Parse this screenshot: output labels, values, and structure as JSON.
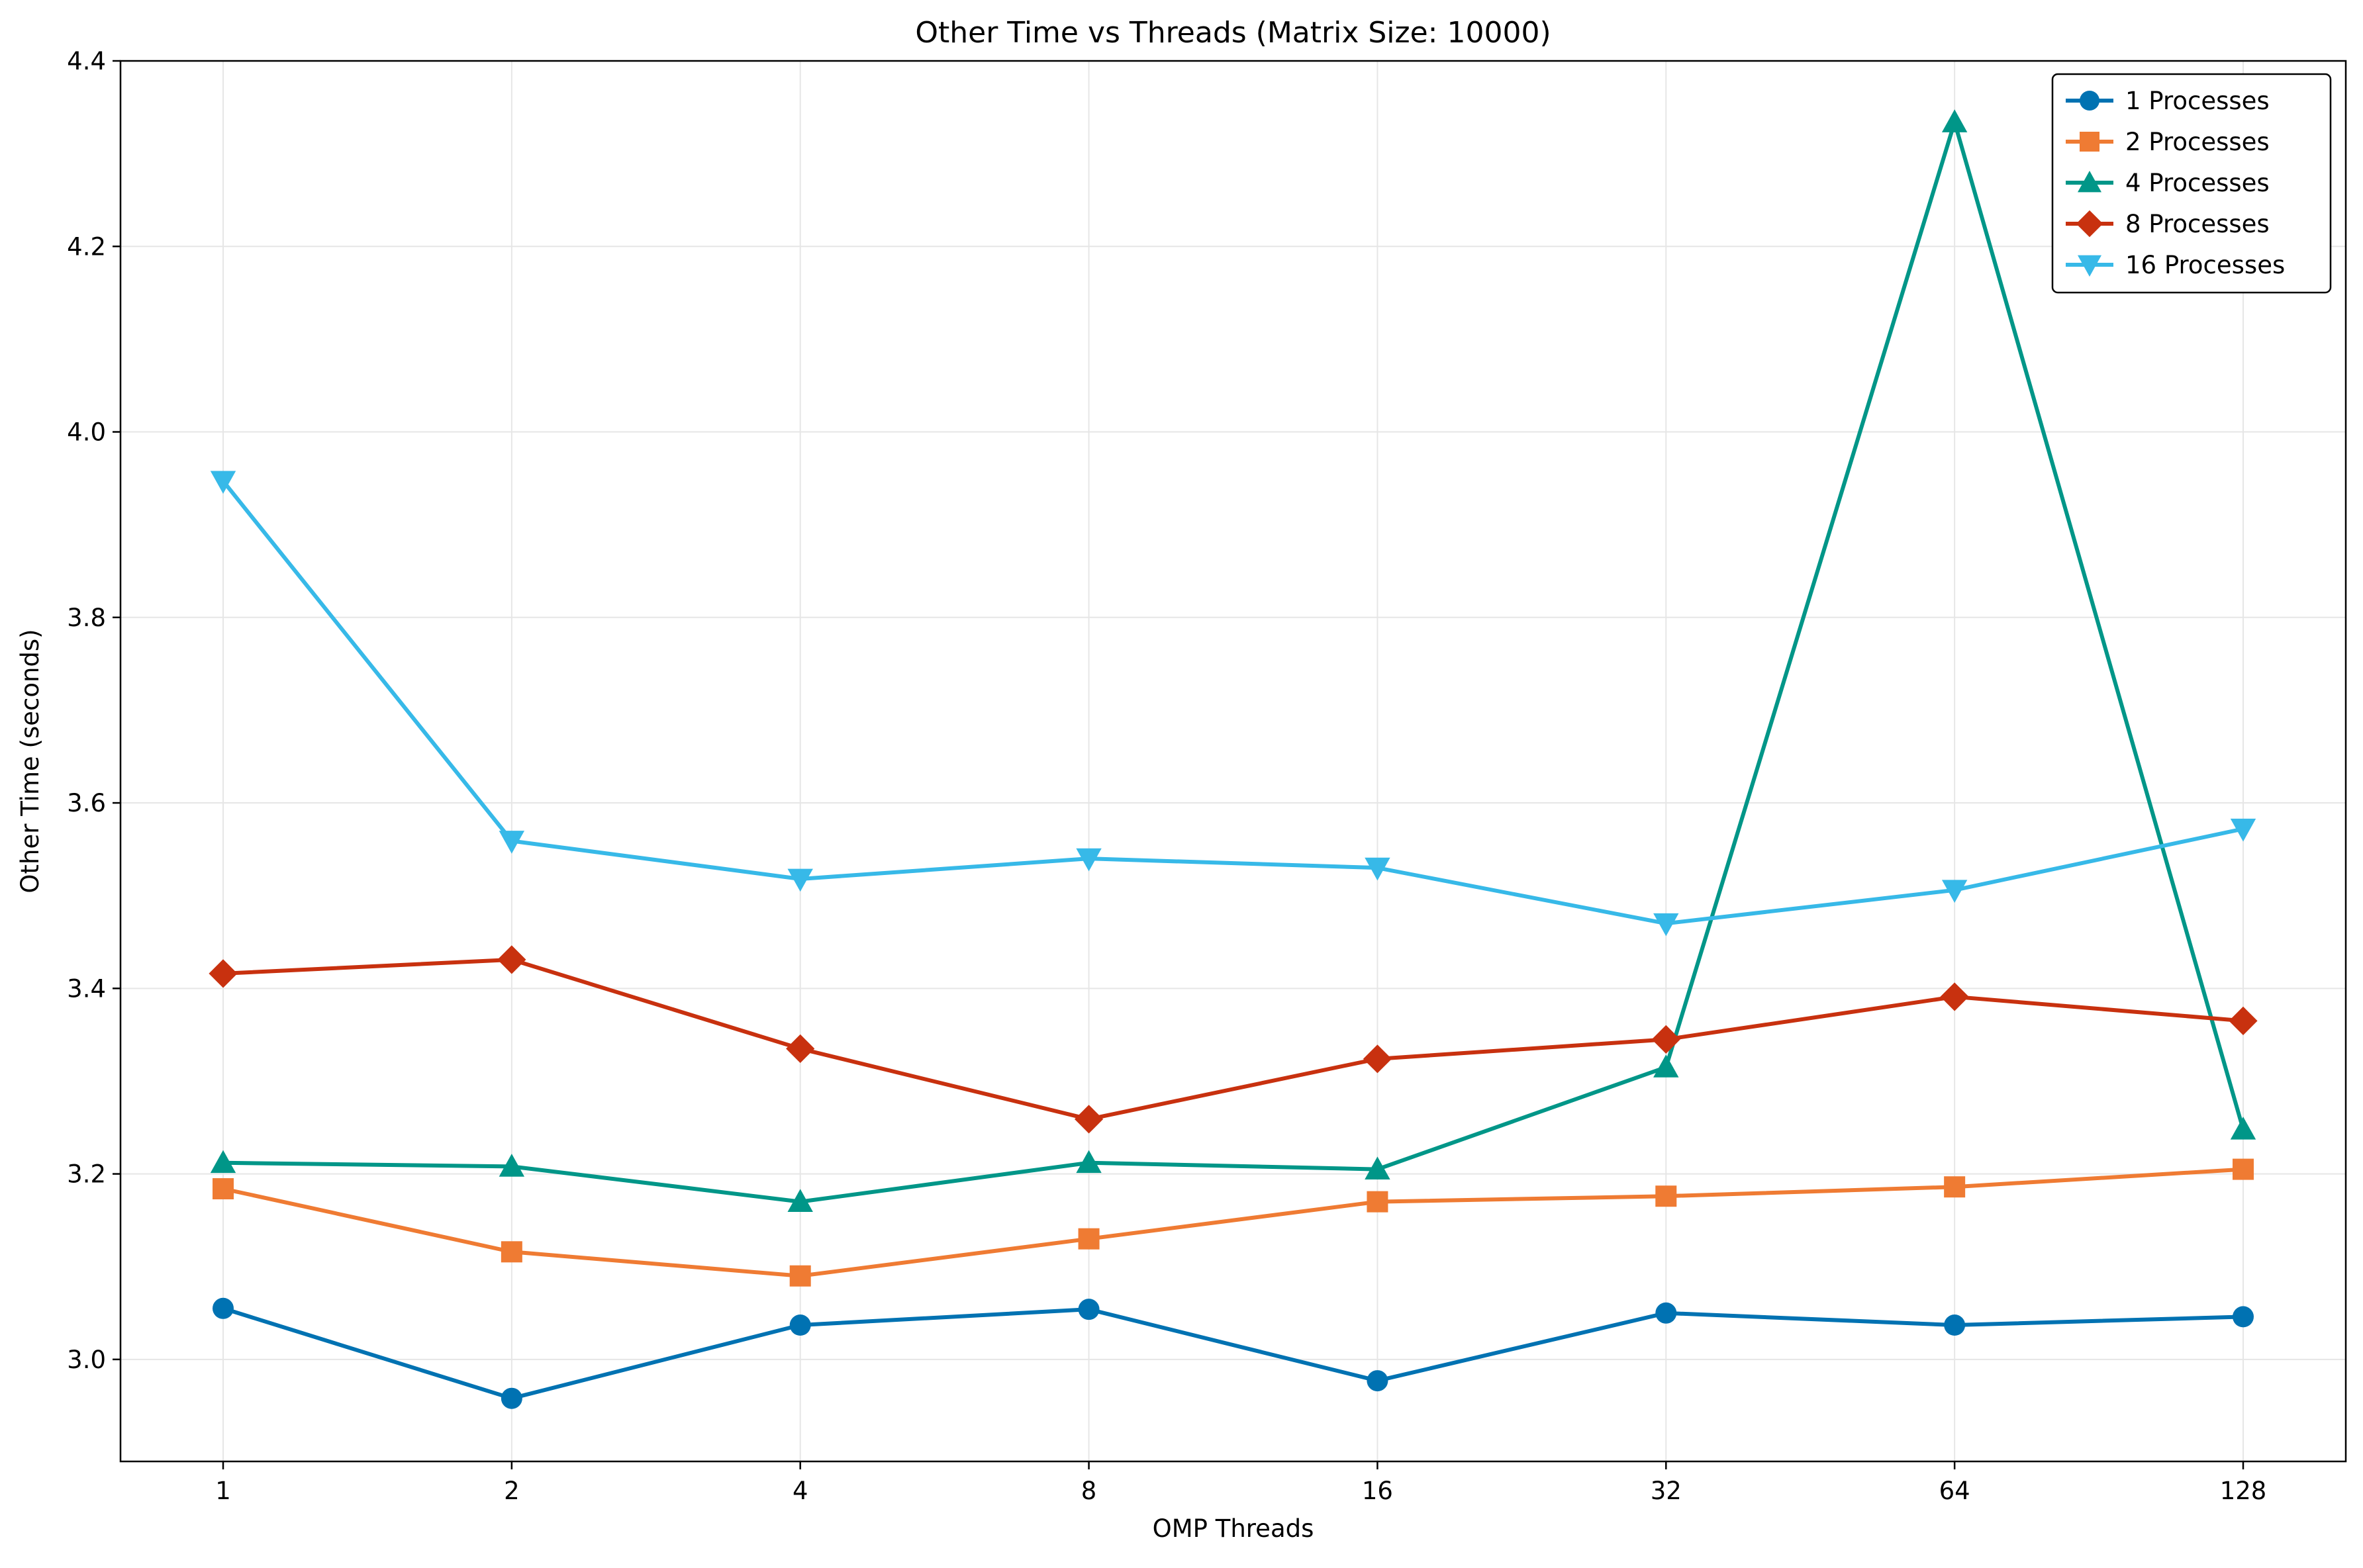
{
  "chart_data": {
    "type": "line",
    "title": "Other Time vs Threads (Matrix Size: 10000)",
    "xlabel": "OMP Threads",
    "ylabel": "Other Time (seconds)",
    "categories": [
      "1",
      "2",
      "4",
      "8",
      "16",
      "32",
      "64",
      "128"
    ],
    "ylim": [
      2.89,
      4.4
    ],
    "yticks": [
      3.0,
      3.2,
      3.4,
      3.6,
      3.8,
      4.0,
      4.2,
      4.4
    ],
    "ytick_labels": [
      "3.0",
      "3.2",
      "3.4",
      "3.6",
      "3.8",
      "4.0",
      "4.2",
      "4.4"
    ],
    "grid": true,
    "legend_position": "top-right",
    "series": [
      {
        "name": "1 Processes",
        "color": "#0072b2",
        "marker": "circle",
        "values": [
          3.055,
          2.958,
          3.037,
          3.054,
          2.977,
          3.05,
          3.037,
          3.046
        ]
      },
      {
        "name": "2 Processes",
        "color": "#ef7b33",
        "marker": "square",
        "values": [
          3.184,
          3.116,
          3.09,
          3.13,
          3.17,
          3.176,
          3.186,
          3.205
        ]
      },
      {
        "name": "4 Processes",
        "color": "#009688",
        "marker": "triangle-up",
        "values": [
          3.212,
          3.208,
          3.17,
          3.212,
          3.205,
          3.315,
          4.334,
          3.248
        ]
      },
      {
        "name": "8 Processes",
        "color": "#c8310f",
        "marker": "diamond",
        "values": [
          3.416,
          3.431,
          3.335,
          3.259,
          3.324,
          3.345,
          3.391,
          3.365
        ]
      },
      {
        "name": "16 Processes",
        "color": "#37b9e8",
        "marker": "triangle-down",
        "values": [
          3.947,
          3.559,
          3.518,
          3.54,
          3.53,
          3.47,
          3.506,
          3.572
        ]
      }
    ]
  }
}
